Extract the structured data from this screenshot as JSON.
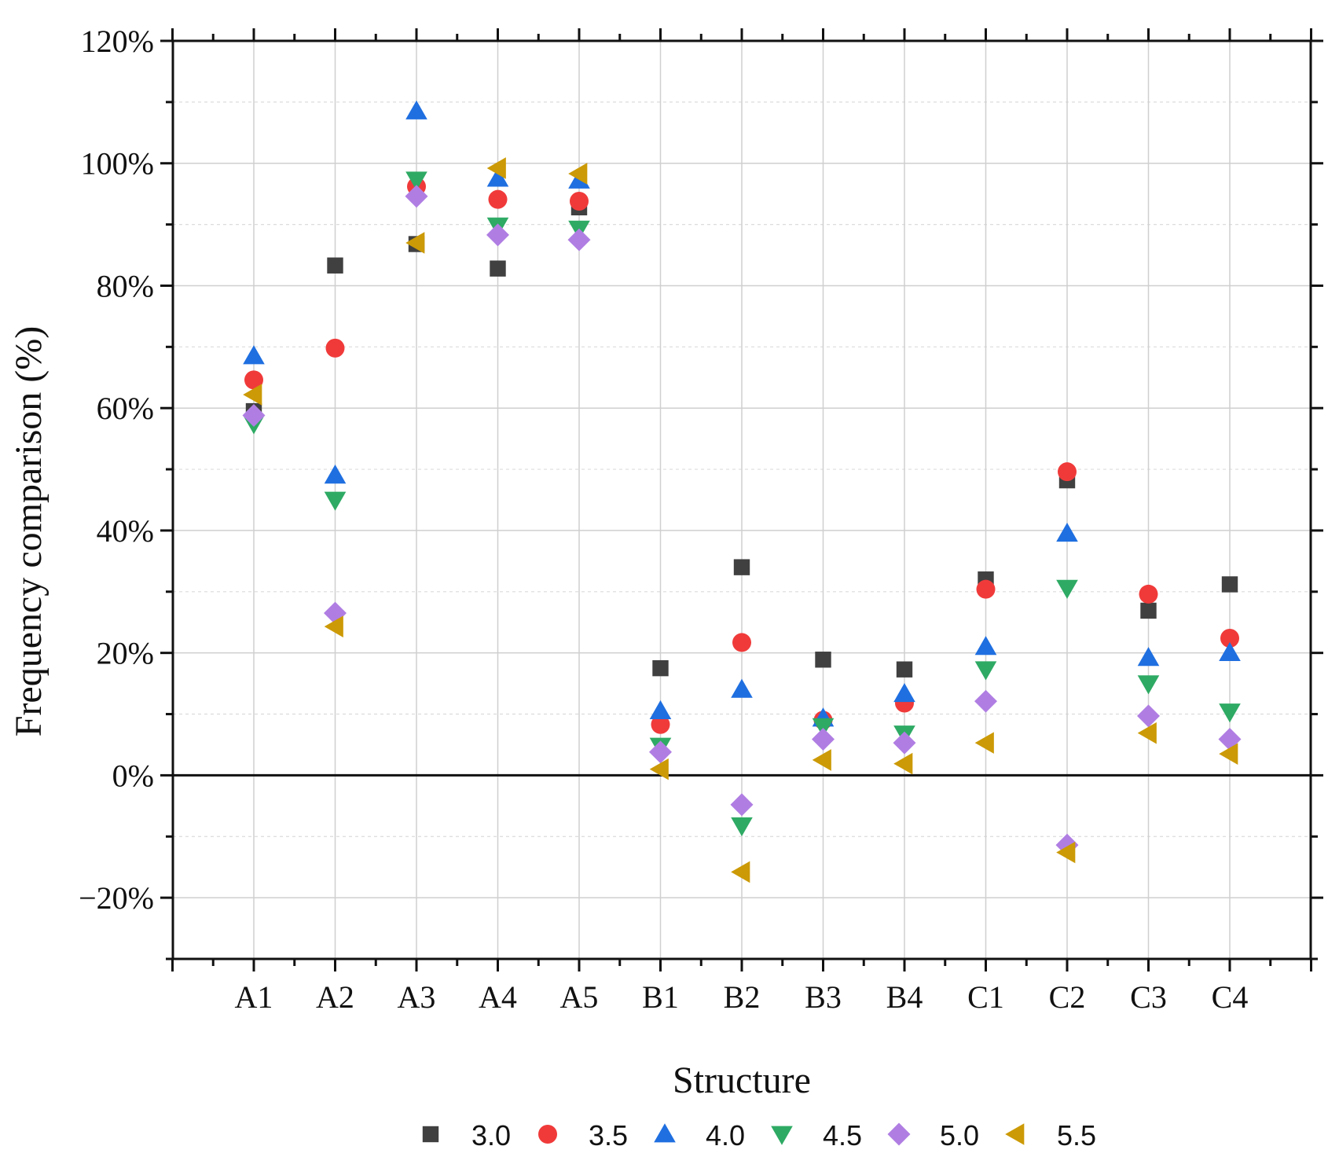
{
  "chart_data": {
    "type": "scatter",
    "title": "",
    "xlabel": "Structure",
    "ylabel": "Frequency comparison (%)",
    "categories": [
      "A1",
      "A2",
      "A3",
      "A4",
      "A5",
      "B1",
      "B2",
      "B3",
      "B4",
      "C1",
      "C2",
      "C3",
      "C4"
    ],
    "ylim": [
      -30,
      120
    ],
    "yticks": [
      -20,
      0,
      20,
      40,
      60,
      80,
      100,
      120
    ],
    "ytick_labels": [
      "−20%",
      "0%",
      "20%",
      "40%",
      "60%",
      "80%",
      "100%",
      "120%"
    ],
    "grid": true,
    "legend_position": "bottom",
    "series": [
      {
        "name": "3.0",
        "marker": "square",
        "color": "#404040",
        "values": [
          59.5,
          83.3,
          86.8,
          82.8,
          92.8,
          17.5,
          34.0,
          18.9,
          17.3,
          32.0,
          48.2,
          26.9,
          31.2
        ]
      },
      {
        "name": "3.5",
        "marker": "circle",
        "color": "#f03a3a",
        "values": [
          64.6,
          69.8,
          96.2,
          94.1,
          93.8,
          8.3,
          21.7,
          9.0,
          11.8,
          30.4,
          49.6,
          29.6,
          22.4
        ]
      },
      {
        "name": "4.0",
        "marker": "triangle-up",
        "color": "#1f6fe0",
        "values": [
          68.5,
          49.0,
          108.5,
          97.5,
          97.2,
          10.5,
          14.0,
          9.3,
          13.3,
          21.0,
          39.5,
          19.2,
          20.0
        ]
      },
      {
        "name": "4.5",
        "marker": "triangle-down",
        "color": "#2eaa64",
        "values": [
          57.5,
          45.0,
          97.3,
          89.8,
          89.3,
          4.8,
          -8.2,
          8.0,
          6.8,
          17.3,
          30.6,
          15.0,
          10.4
        ]
      },
      {
        "name": "5.0",
        "marker": "diamond",
        "color": "#b07ee3",
        "values": [
          58.8,
          26.5,
          94.6,
          88.3,
          87.5,
          3.8,
          -4.8,
          5.9,
          5.3,
          12.1,
          -11.4,
          9.7,
          5.9
        ]
      },
      {
        "name": "5.5",
        "marker": "triangle-left",
        "color": "#cc9a06",
        "values": [
          62.2,
          24.3,
          87.0,
          99.2,
          98.3,
          1.0,
          -15.8,
          2.5,
          1.9,
          5.3,
          -12.6,
          6.9,
          3.5
        ]
      }
    ]
  }
}
